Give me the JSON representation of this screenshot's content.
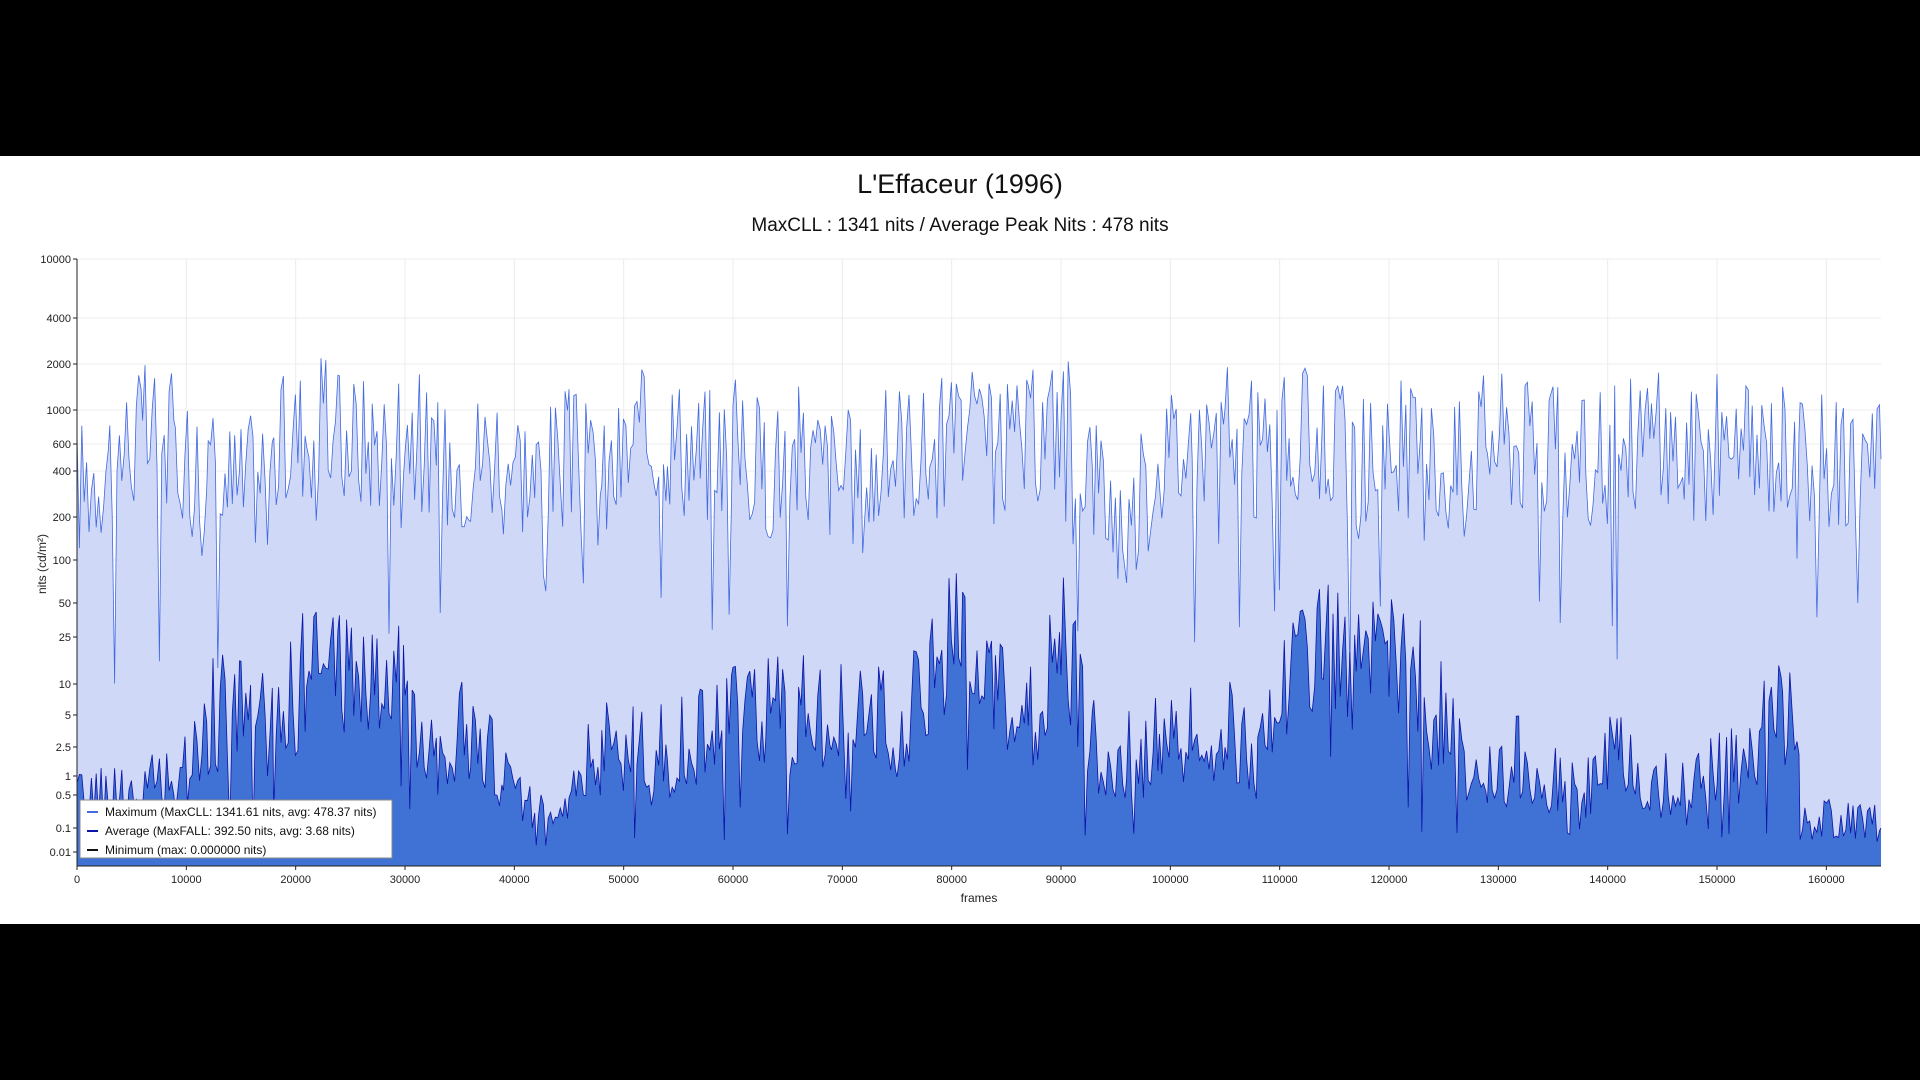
{
  "chart_data": {
    "type": "area",
    "title": "L'Effaceur (1996)",
    "subtitle": "MaxCLL : 1341 nits / Average Peak Nits : 478 nits",
    "xlabel": "frames",
    "ylabel": "nits (cd/m²)",
    "xlim": [
      0,
      165000
    ],
    "ylim": [
      0.005,
      10000
    ],
    "yscale": "pq-log",
    "x_ticks": [
      "0",
      "10000",
      "20000",
      "30000",
      "40000",
      "50000",
      "60000",
      "70000",
      "80000",
      "90000",
      "100000",
      "110000",
      "120000",
      "130000",
      "140000",
      "150000",
      "160000"
    ],
    "y_ticks": [
      {
        "v": 10000,
        "label": "10000"
      },
      {
        "v": 4000,
        "label": "4000"
      },
      {
        "v": 2000,
        "label": "2000"
      },
      {
        "v": 1000,
        "label": "1000"
      },
      {
        "v": 600,
        "label": "600"
      },
      {
        "v": 400,
        "label": "400"
      },
      {
        "v": 200,
        "label": "200"
      },
      {
        "v": 100,
        "label": "100"
      },
      {
        "v": 50,
        "label": "50"
      },
      {
        "v": 25,
        "label": "25"
      },
      {
        "v": 10,
        "label": "10"
      },
      {
        "v": 5,
        "label": "5"
      },
      {
        "v": 2.5,
        "label": "2.5"
      },
      {
        "v": 1,
        "label": "1"
      },
      {
        "v": 0.5,
        "label": "0.5"
      },
      {
        "v": 0.1,
        "label": "0.1"
      },
      {
        "v": 0.01,
        "label": "0.01"
      }
    ],
    "grid": true,
    "legend_position": "bottom-left",
    "series": [
      {
        "name": "Maximum (MaxCLL: 1341.61 nits, avg: 478.37 nits)",
        "color": "#4169e1",
        "fill": "#d0d8f8",
        "max_value": 1341.61,
        "avg_value": 478.37,
        "x": [
          0,
          3000,
          6000,
          9000,
          12000,
          15000,
          18000,
          21000,
          24000,
          27000,
          30000,
          33000,
          36000,
          39000,
          42000,
          45000,
          48000,
          51000,
          54000,
          57000,
          60000,
          63000,
          66000,
          69000,
          72000,
          75000,
          78000,
          81000,
          84000,
          87000,
          90000,
          93000,
          96000,
          99000,
          102000,
          105000,
          108000,
          111000,
          114000,
          117000,
          120000,
          123000,
          126000,
          129000,
          132000,
          135000,
          138000,
          141000,
          144000,
          147000,
          150000,
          153000,
          156000,
          157500,
          157600,
          165000
        ],
        "values": [
          300,
          500,
          700,
          600,
          400,
          300,
          500,
          800,
          700,
          600,
          900,
          400,
          500,
          600,
          350,
          500,
          300,
          600,
          700,
          500,
          600,
          400,
          500,
          400,
          300,
          600,
          500,
          700,
          500,
          600,
          900,
          400,
          150,
          500,
          600,
          700,
          500,
          600,
          700,
          400,
          600,
          500,
          400,
          700,
          600,
          500,
          400,
          600,
          700,
          500,
          600,
          500,
          600,
          700,
          478,
          478
        ]
      },
      {
        "name": "Average (MaxFALL: 392.50 nits, avg: 3.68 nits)",
        "color": "#0a14a8",
        "fill": "#3f72d4",
        "max_value": 392.5,
        "avg_value": 3.68,
        "x": [
          0,
          3000,
          6000,
          9000,
          12000,
          15000,
          18000,
          21000,
          24000,
          27000,
          30000,
          33000,
          36000,
          39000,
          42000,
          45000,
          48000,
          51000,
          54000,
          57000,
          60000,
          63000,
          66000,
          69000,
          72000,
          75000,
          78000,
          81000,
          84000,
          87000,
          90000,
          93000,
          96000,
          99000,
          102000,
          105000,
          108000,
          111000,
          114000,
          117000,
          120000,
          123000,
          126000,
          129000,
          132000,
          135000,
          138000,
          141000,
          144000,
          147000,
          150000,
          153000,
          156000,
          157500,
          157600,
          165000
        ],
        "values": [
          0.3,
          0.4,
          0.5,
          0.6,
          4,
          6,
          3,
          12,
          14,
          10,
          8,
          2,
          3,
          0.8,
          0.3,
          0.6,
          2,
          2.5,
          1.5,
          3,
          4,
          5,
          6,
          5,
          4,
          3,
          8,
          40,
          6,
          3,
          30,
          2,
          1.5,
          2,
          2.5,
          3,
          1.5,
          15,
          25,
          12,
          14,
          10,
          2,
          0.8,
          1.5,
          0.7,
          0.4,
          2,
          0.5,
          0.8,
          1.2,
          2,
          5,
          2,
          0.1,
          0.1
        ]
      },
      {
        "name": "Minimum (max: 0.000000 nits)",
        "color": "#111111",
        "max_value": 0.0,
        "x": [
          0,
          165000
        ],
        "values": [
          0,
          0
        ]
      }
    ]
  }
}
